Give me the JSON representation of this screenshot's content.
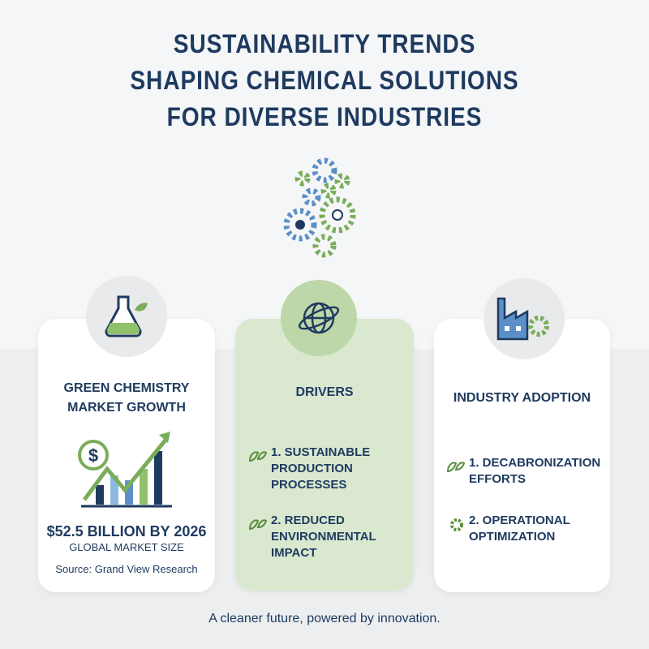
{
  "header": {
    "title_lines": [
      "SUSTAINABILITY TRENDS",
      "SHAPING CHEMICAL SOLUTIONS",
      "FOR DIVERSE INDUSTRIES"
    ]
  },
  "cards": [
    {
      "title": "GREEN CHEMISTRY MARKET GROWTH",
      "icon_text": "$",
      "stat": "$52.5 BILLION BY 2026",
      "stat_caption": "GLOBAL MARKET SIZE",
      "source": "Source: Grand View Research"
    },
    {
      "title": "DRIVERS",
      "items": [
        "1. SUSTAINABLE PRODUCTION PROCESSES",
        "2. REDUCED ENVIRONMENTAL IMPACT"
      ]
    },
    {
      "title": "INDUSTRY ADOPTION",
      "items": [
        "1. DECABRONIZATION EFFORTS",
        "2. OPERATIONAL OPTIMIZATION"
      ]
    }
  ],
  "footer": {
    "tagline": "A cleaner future, powered by innovation."
  }
}
